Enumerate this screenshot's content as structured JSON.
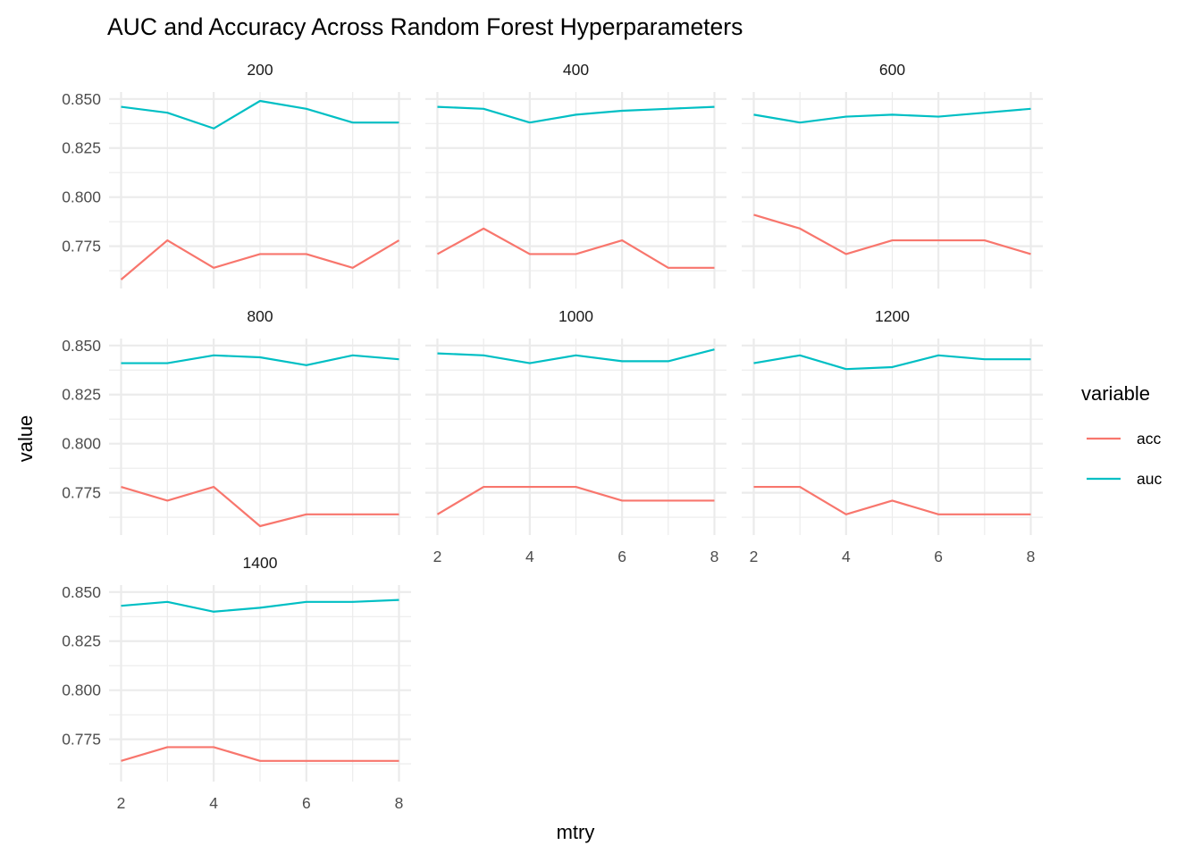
{
  "chart_data": {
    "type": "line",
    "title": "AUC and Accuracy Across Random Forest Hyperparameters",
    "xlabel": "mtry",
    "ylabel": "value",
    "x": [
      2,
      3,
      4,
      5,
      6,
      7,
      8
    ],
    "xlim": [
      2,
      8
    ],
    "ylim": [
      0.758,
      0.849
    ],
    "x_ticks": [
      2,
      4,
      6,
      8
    ],
    "y_ticks": [
      0.775,
      0.8,
      0.825,
      0.85
    ],
    "x_tick_labels": [
      "2",
      "4",
      "6",
      "8"
    ],
    "y_tick_labels": [
      "0.775",
      "0.800",
      "0.825",
      "0.850"
    ],
    "grid": true,
    "legend": {
      "title": "variable",
      "position": "right",
      "entries": [
        {
          "name": "acc",
          "color": "#F8766D"
        },
        {
          "name": "auc",
          "color": "#00BFC4"
        }
      ]
    },
    "facets": [
      {
        "label": "200",
        "series": [
          {
            "name": "acc",
            "values": [
              0.758,
              0.778,
              0.764,
              0.771,
              0.771,
              0.764,
              0.778
            ]
          },
          {
            "name": "auc",
            "values": [
              0.846,
              0.843,
              0.835,
              0.849,
              0.845,
              0.838,
              0.838
            ]
          }
        ]
      },
      {
        "label": "400",
        "series": [
          {
            "name": "acc",
            "values": [
              0.771,
              0.784,
              0.771,
              0.771,
              0.778,
              0.764,
              0.764
            ]
          },
          {
            "name": "auc",
            "values": [
              0.846,
              0.845,
              0.838,
              0.842,
              0.844,
              0.845,
              0.846
            ]
          }
        ]
      },
      {
        "label": "600",
        "series": [
          {
            "name": "acc",
            "values": [
              0.791,
              0.784,
              0.771,
              0.778,
              0.778,
              0.778,
              0.771
            ]
          },
          {
            "name": "auc",
            "values": [
              0.842,
              0.838,
              0.841,
              0.842,
              0.841,
              0.843,
              0.845
            ]
          }
        ]
      },
      {
        "label": "800",
        "series": [
          {
            "name": "acc",
            "values": [
              0.778,
              0.771,
              0.778,
              0.758,
              0.764,
              0.764,
              0.764
            ]
          },
          {
            "name": "auc",
            "values": [
              0.841,
              0.841,
              0.845,
              0.844,
              0.84,
              0.845,
              0.843
            ]
          }
        ]
      },
      {
        "label": "1000",
        "series": [
          {
            "name": "acc",
            "values": [
              0.764,
              0.778,
              0.778,
              0.778,
              0.771,
              0.771,
              0.771
            ]
          },
          {
            "name": "auc",
            "values": [
              0.846,
              0.845,
              0.841,
              0.845,
              0.842,
              0.842,
              0.848
            ]
          }
        ]
      },
      {
        "label": "1200",
        "series": [
          {
            "name": "acc",
            "values": [
              0.778,
              0.778,
              0.764,
              0.771,
              0.764,
              0.764,
              0.764
            ]
          },
          {
            "name": "auc",
            "values": [
              0.841,
              0.845,
              0.838,
              0.839,
              0.845,
              0.843,
              0.843
            ]
          }
        ]
      },
      {
        "label": "1400",
        "series": [
          {
            "name": "acc",
            "values": [
              0.764,
              0.771,
              0.771,
              0.764,
              0.764,
              0.764,
              0.764
            ]
          },
          {
            "name": "auc",
            "values": [
              0.843,
              0.845,
              0.84,
              0.842,
              0.845,
              0.845,
              0.846
            ]
          }
        ]
      }
    ]
  }
}
